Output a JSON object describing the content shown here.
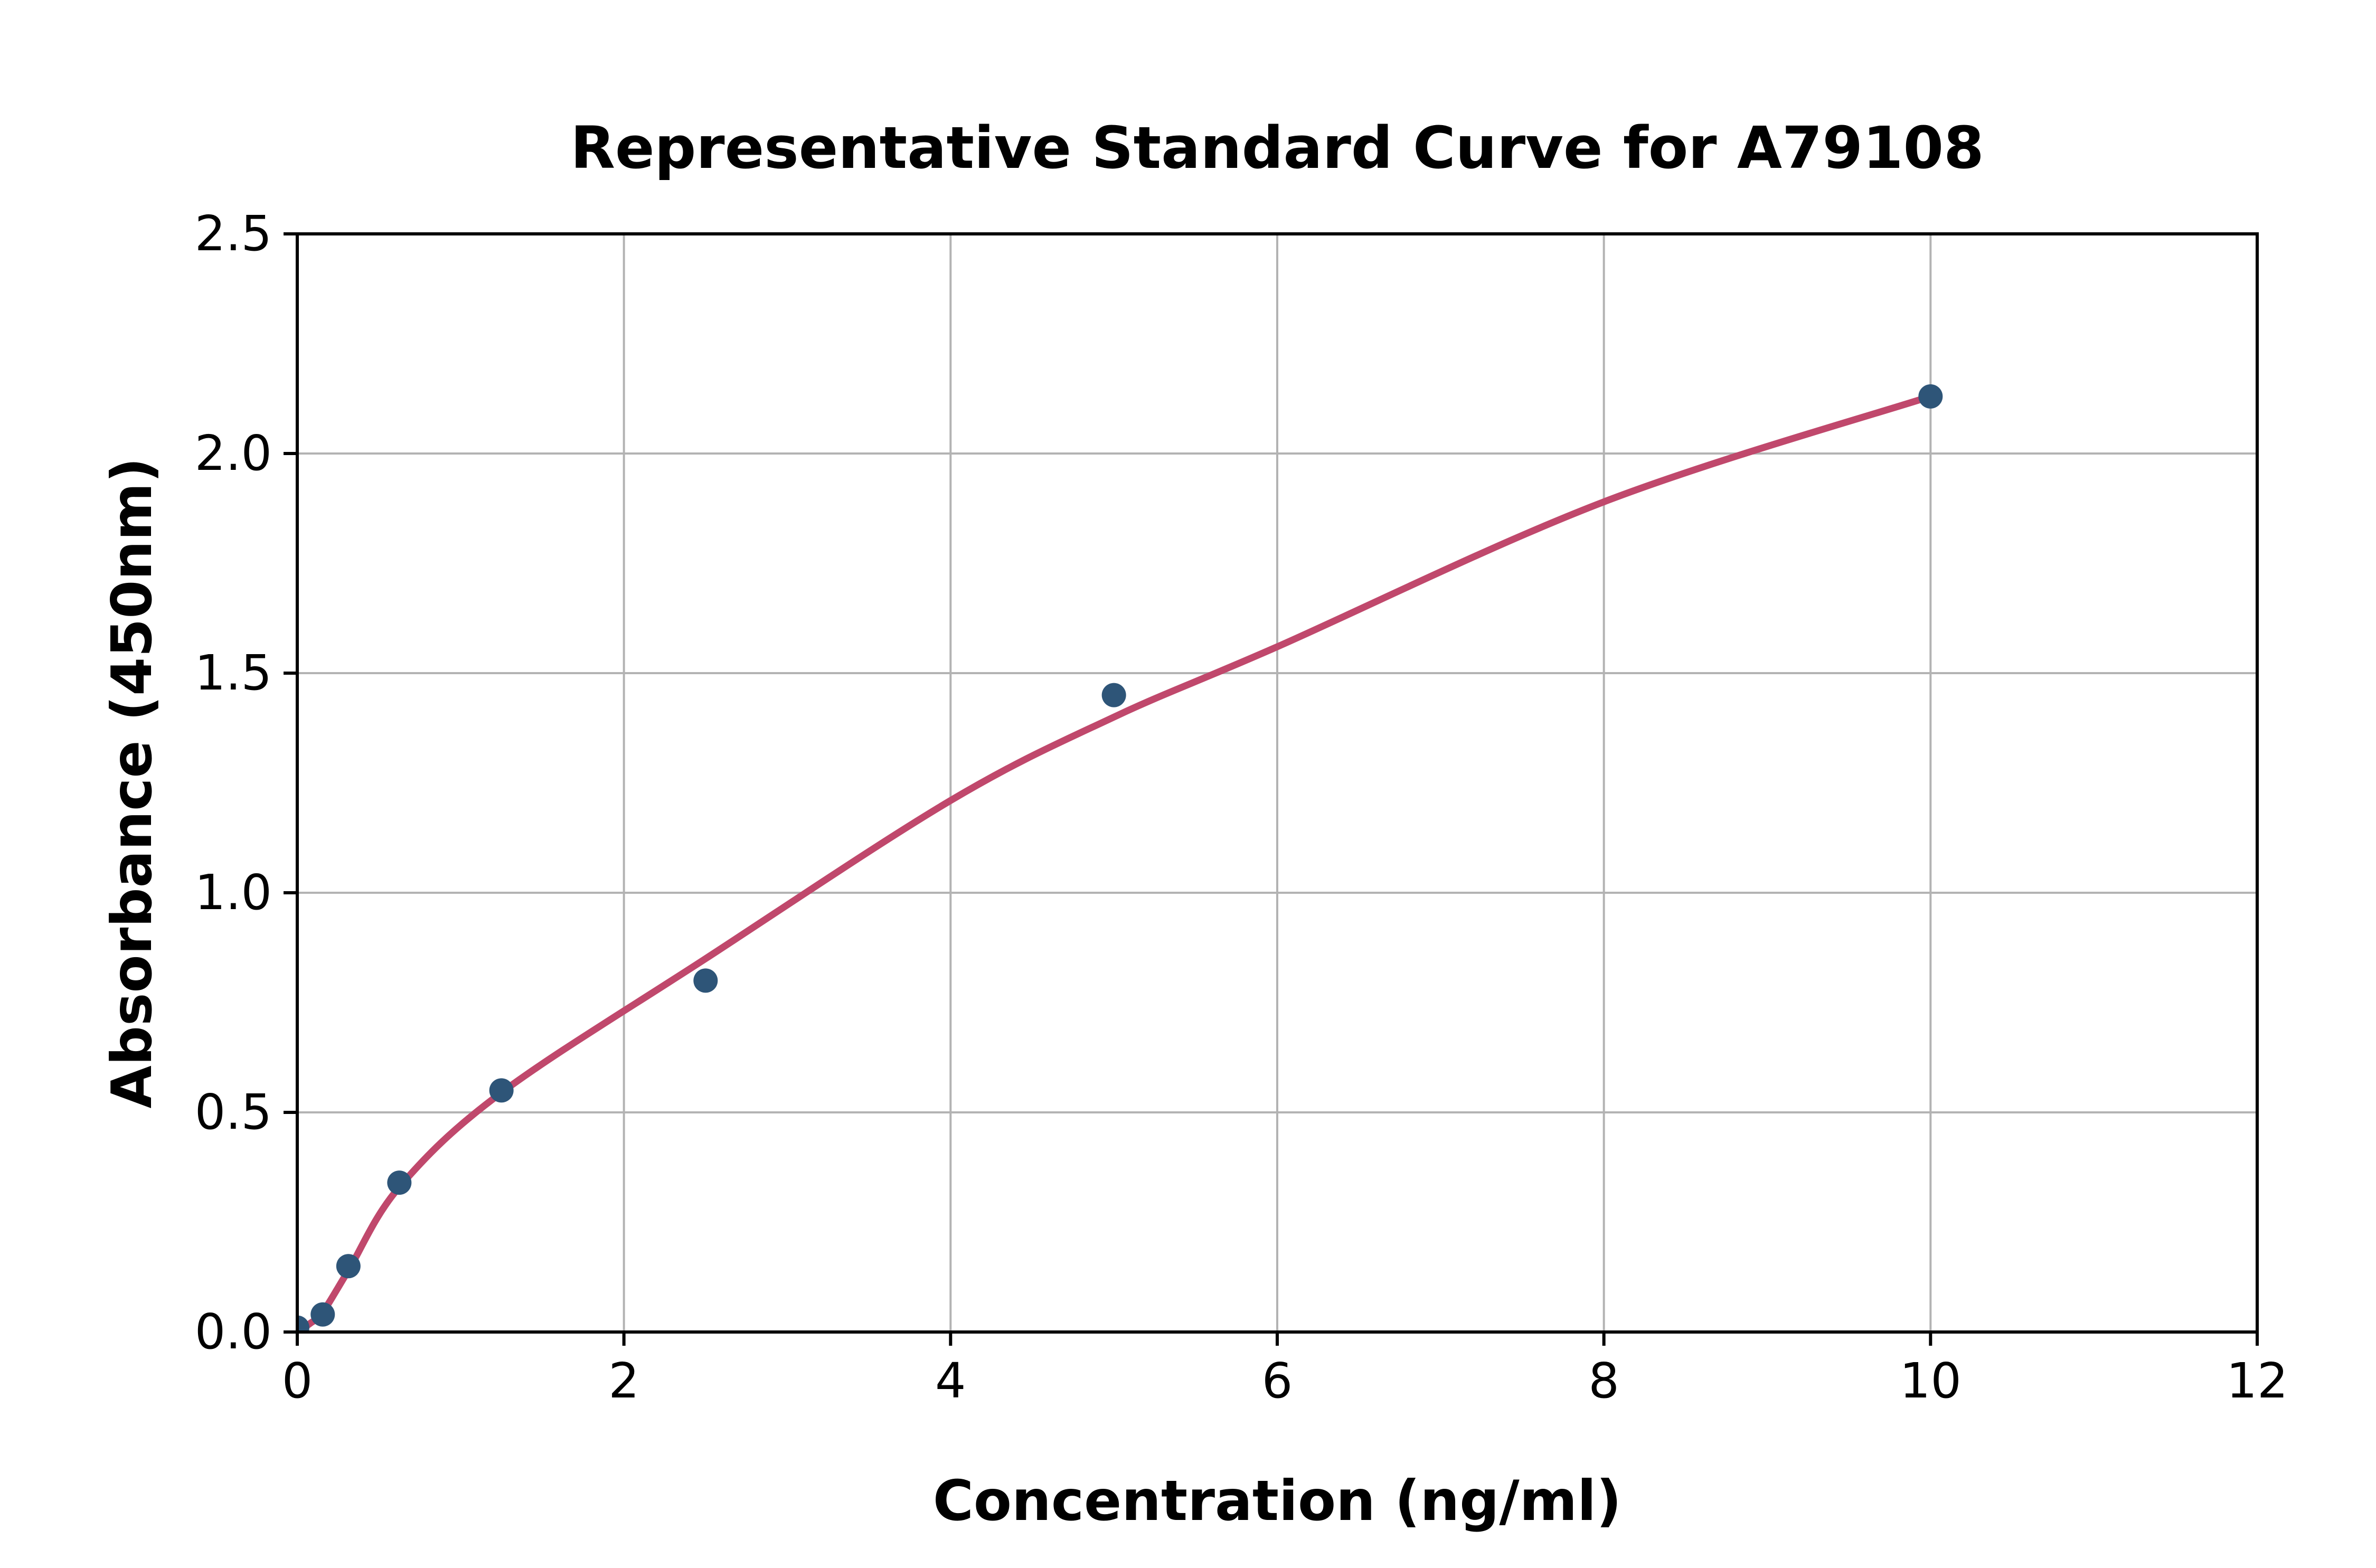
{
  "chart_data": {
    "type": "scatter",
    "title": "Representative Standard Curve for A79108",
    "xlabel": "Concentration (ng/ml)",
    "ylabel": "Absorbance (450nm)",
    "xlim": [
      0,
      12
    ],
    "ylim": [
      0.0,
      2.5
    ],
    "x_ticks": [
      0,
      2,
      4,
      6,
      8,
      10,
      12
    ],
    "y_ticks": [
      0.0,
      0.5,
      1.0,
      1.5,
      2.0,
      2.5
    ],
    "x_tick_labels": [
      "0",
      "2",
      "4",
      "6",
      "8",
      "10",
      "12"
    ],
    "y_tick_labels": [
      "0.0",
      "0.5",
      "1.0",
      "1.5",
      "2.0",
      "2.5"
    ],
    "grid": true,
    "legend_position": "none",
    "series": [
      {
        "name": "standard-points",
        "type": "scatter",
        "color": "#2e5578",
        "points": [
          [
            0,
            0.01
          ],
          [
            0.156,
            0.04
          ],
          [
            0.313,
            0.15
          ],
          [
            0.625,
            0.34
          ],
          [
            1.25,
            0.55
          ],
          [
            2.5,
            0.8
          ],
          [
            5,
            1.45
          ],
          [
            10,
            2.13
          ]
        ]
      },
      {
        "name": "fitted-curve",
        "type": "line",
        "color": "#c0486c",
        "points": [
          [
            0,
            0.0
          ],
          [
            0.08,
            0.02
          ],
          [
            0.156,
            0.045
          ],
          [
            0.313,
            0.14
          ],
          [
            0.625,
            0.33
          ],
          [
            1.25,
            0.545
          ],
          [
            2.5,
            0.85
          ],
          [
            4,
            1.21
          ],
          [
            5,
            1.4
          ],
          [
            6,
            1.56
          ],
          [
            8,
            1.89
          ],
          [
            10,
            2.13
          ]
        ]
      }
    ],
    "colors": {
      "grid": "#b3b3b3",
      "axis": "#000000",
      "text": "#000000",
      "background": "#ffffff"
    }
  }
}
